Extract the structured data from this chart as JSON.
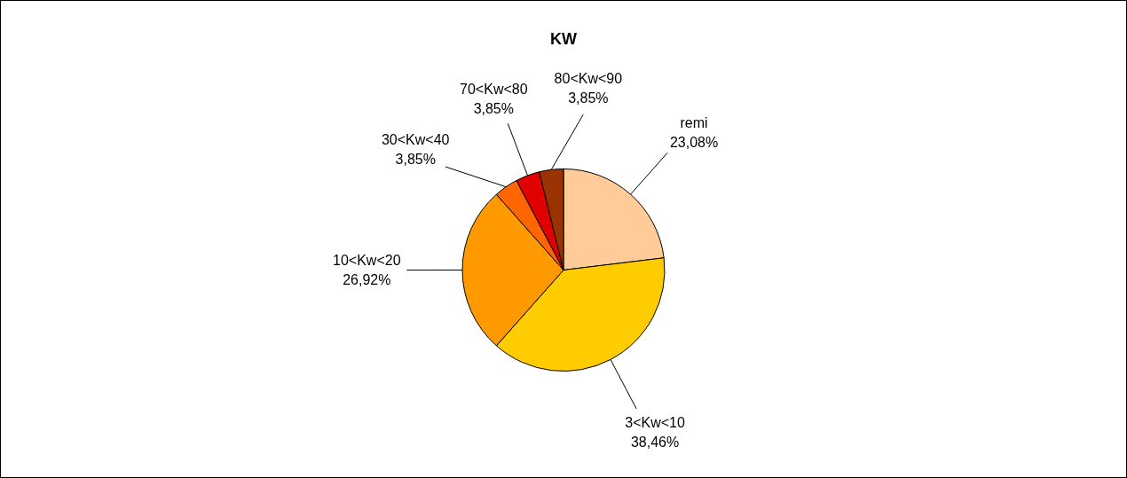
{
  "chart_data": {
    "type": "pie",
    "title": "KW",
    "categories": [
      "remi",
      "3<Kw<10",
      "10<Kw<20",
      "30<Kw<40",
      "70<Kw<80",
      "80<Kw<90"
    ],
    "values": [
      23.08,
      38.46,
      26.92,
      3.85,
      3.85,
      3.85
    ],
    "value_labels": [
      "23,08%",
      "38,46%",
      "26,92%",
      "3,85%",
      "3,85%",
      "3,85%"
    ],
    "colors": [
      "#ffcc99",
      "#ffcc00",
      "#ff9900",
      "#ff6600",
      "#e00000",
      "#993300"
    ],
    "legend": false
  }
}
